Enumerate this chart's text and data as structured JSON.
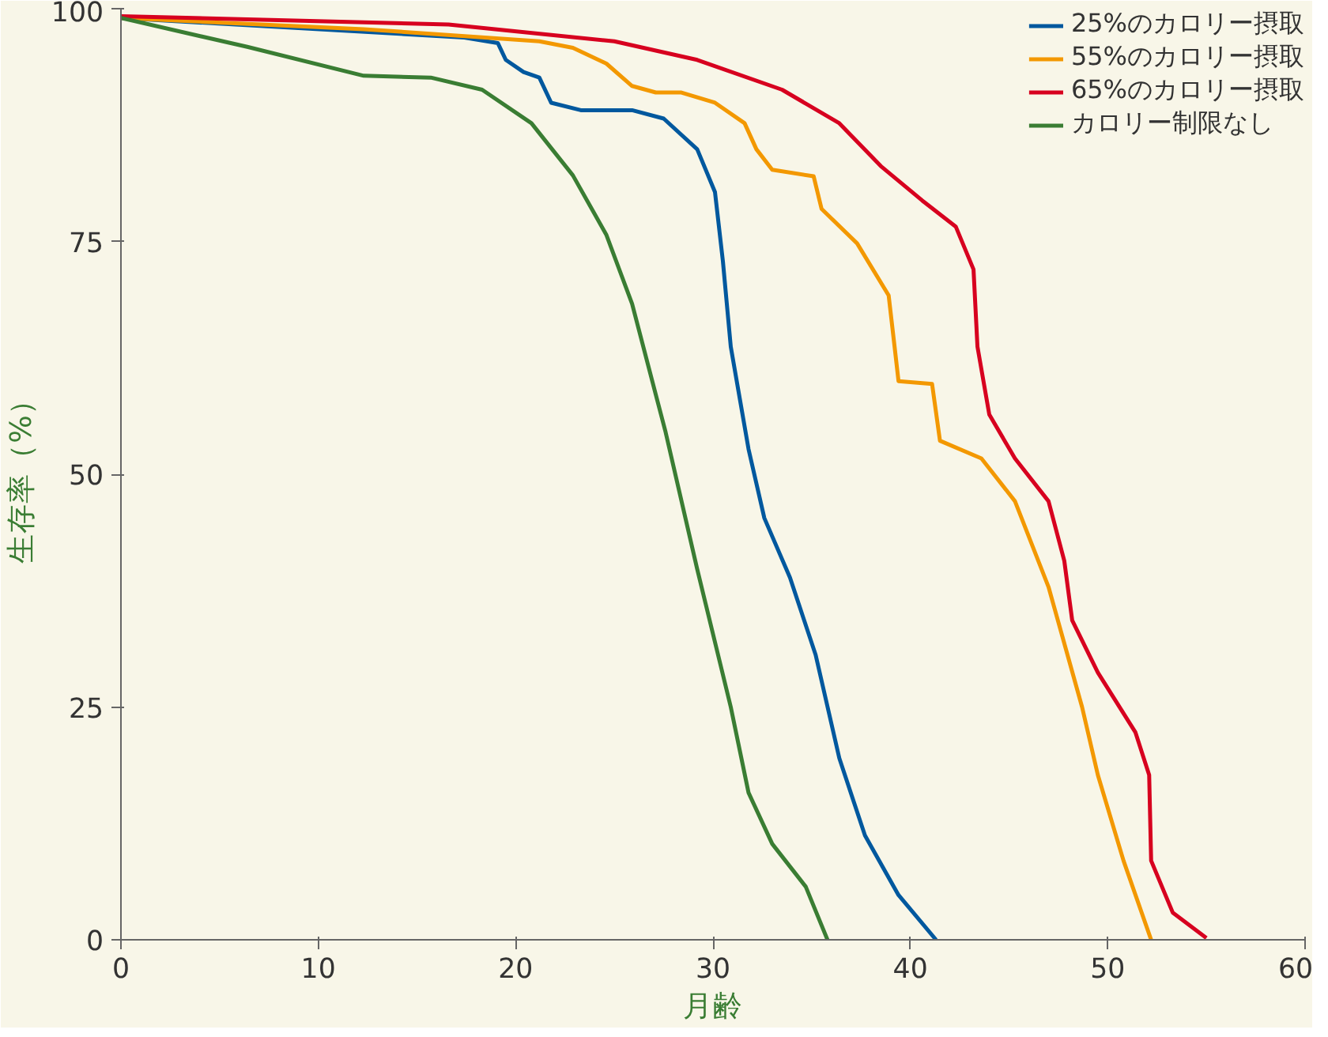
{
  "chart_data": {
    "type": "line",
    "xlabel": "月齢",
    "ylabel": "生存率（%）",
    "xlim": [
      0,
      60
    ],
    "xticks": [
      0,
      10,
      20,
      30,
      40,
      50,
      60
    ],
    "ylim": [
      0,
      100
    ],
    "yticks": [
      0,
      25,
      50,
      75,
      100
    ],
    "grid": false,
    "legend": "top right",
    "marker": "none",
    "line_style": "solid",
    "series": [
      {
        "name": "25%のカロリー摂取",
        "color": "#00589e",
        "x": [
          0,
          17.4,
          19.1,
          19.5,
          20.4,
          21.2,
          21.8,
          23.3,
          25.9,
          27.5,
          29.2,
          30.1,
          30.5,
          30.9,
          31.8,
          32.6,
          33.9,
          35.2,
          36.4,
          37.7,
          39.4,
          41.3
        ],
        "values": [
          99,
          96.9,
          96.3,
          94.5,
          93.2,
          92.6,
          89.9,
          89.1,
          89.1,
          88.2,
          84.9,
          80.3,
          72.9,
          63.7,
          52.7,
          45.3,
          38.9,
          30.6,
          19.5,
          11.2,
          4.8,
          0
        ]
      },
      {
        "name": "55%のカロリー摂取",
        "color": "#f39800",
        "x": [
          0,
          12.3,
          21.2,
          22.9,
          24.6,
          25.9,
          27.1,
          28.4,
          30.1,
          31.6,
          32.2,
          33.0,
          35.1,
          35.5,
          37.3,
          38.9,
          39.2,
          39.4,
          41.1,
          41.5,
          43.6,
          45.3,
          47.0,
          48.7,
          49.5,
          50.8,
          52.2
        ],
        "values": [
          99,
          97.8,
          96.5,
          95.8,
          94.1,
          91.7,
          91.0,
          91.0,
          89.9,
          87.7,
          84.9,
          82.7,
          82.0,
          78.5,
          74.8,
          69.2,
          63.7,
          60.0,
          59.7,
          53.6,
          51.7,
          47.1,
          37.9,
          25.0,
          17.7,
          8.5,
          0
        ]
      },
      {
        "name": "65%のカロリー摂取",
        "color": "#d7001f",
        "x": [
          0,
          16.6,
          25.0,
          29.2,
          33.5,
          36.4,
          38.5,
          40.6,
          42.3,
          43.2,
          43.4,
          44.0,
          45.3,
          47.0,
          47.8,
          48.2,
          49.5,
          51.4,
          52.1,
          52.2,
          53.3,
          55.0
        ],
        "values": [
          99.2,
          98.3,
          96.5,
          94.5,
          91.3,
          87.7,
          83.1,
          79.4,
          76.6,
          72.0,
          63.7,
          56.4,
          51.7,
          47.1,
          40.7,
          34.3,
          28.7,
          22.3,
          17.7,
          8.5,
          2.9,
          0.2
        ]
      },
      {
        "name": "カロリー制限なし",
        "color": "#3a7d33",
        "x": [
          0,
          6.4,
          12.3,
          15.7,
          18.3,
          20.8,
          22.9,
          24.6,
          25.9,
          27.6,
          29.2,
          30.9,
          31.8,
          33.0,
          34.7,
          35.8
        ],
        "values": [
          99,
          95.9,
          92.8,
          92.6,
          91.3,
          87.7,
          82.1,
          75.7,
          68.3,
          54.5,
          39.8,
          25.0,
          15.8,
          10.3,
          5.7,
          0
        ]
      }
    ]
  }
}
